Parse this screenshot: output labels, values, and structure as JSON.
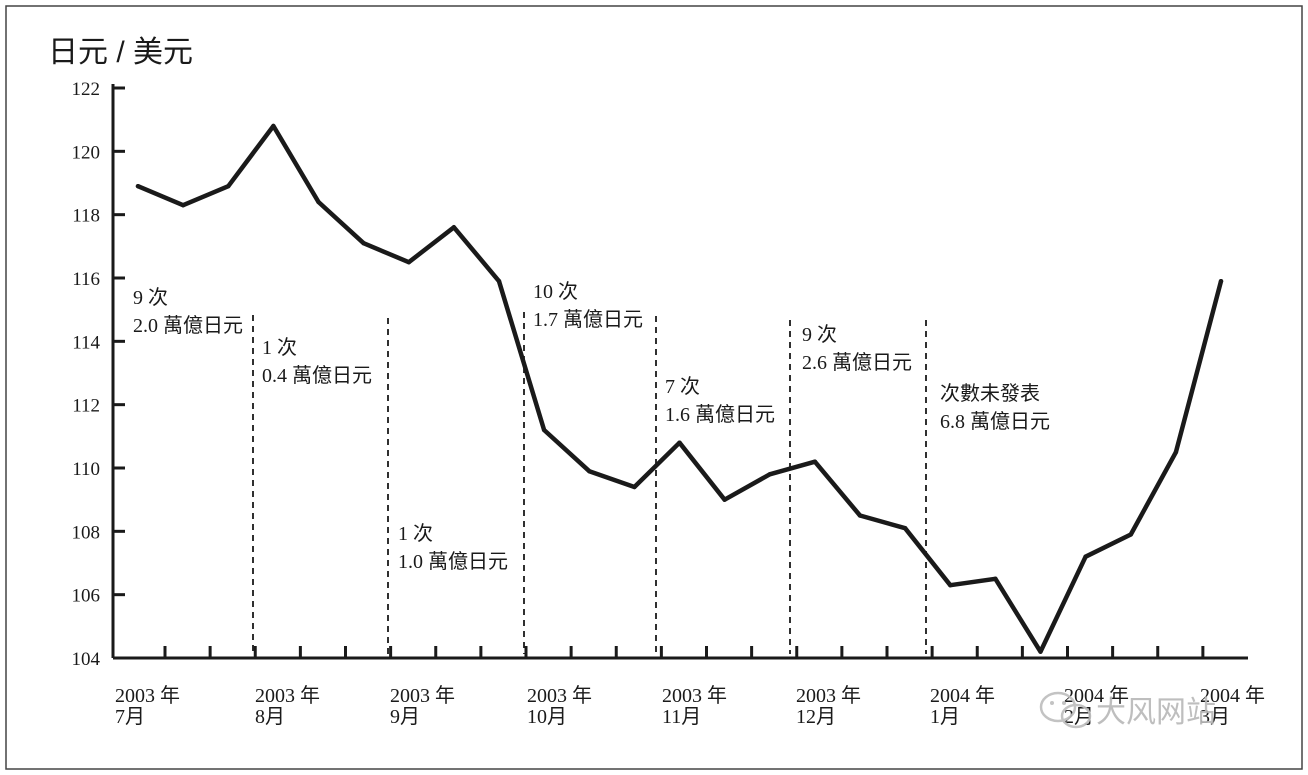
{
  "chart_data": {
    "type": "line",
    "ylabel": "日元 / 美元",
    "ylim": [
      104,
      122
    ],
    "yticks": [
      122,
      120,
      118,
      116,
      114,
      112,
      110,
      108,
      106,
      104
    ],
    "xticks": [
      {
        "year": "2003 年",
        "month": "7月"
      },
      {
        "year": "2003 年",
        "month": "8月"
      },
      {
        "year": "2003 年",
        "month": "9月"
      },
      {
        "year": "2003 年",
        "month": "10月"
      },
      {
        "year": "2003 年",
        "month": "11月"
      },
      {
        "year": "2003 年",
        "month": "12月"
      },
      {
        "year": "2004 年",
        "month": "1月"
      },
      {
        "year": "2004 年",
        "month": "2月"
      },
      {
        "year": "2004 年",
        "month": "3月"
      }
    ],
    "series": [
      {
        "values": [
          118.9,
          118.3,
          118.9,
          120.8,
          118.4,
          117.1,
          116.5,
          117.6,
          115.9,
          111.2,
          109.9,
          109.4,
          110.8,
          109.0,
          109.8,
          110.2,
          108.5,
          108.1,
          106.3,
          106.5,
          104.2,
          107.2,
          107.9,
          110.5,
          115.9
        ]
      }
    ],
    "annotations": [
      {
        "line1": "9 次",
        "line2": "2.0 萬億日元"
      },
      {
        "line1": "1 次",
        "line2": "0.4 萬億日元"
      },
      {
        "line1": "1 次",
        "line2": "1.0 萬億日元"
      },
      {
        "line1": "10 次",
        "line2": "1.7 萬億日元"
      },
      {
        "line1": "7 次",
        "line2": "1.6 萬億日元"
      },
      {
        "line1": "9 次",
        "line2": "2.6 萬億日元"
      },
      {
        "line1": "次數未發表",
        "line2": "6.8 萬億日元"
      }
    ],
    "grid": false,
    "legend": "none"
  },
  "watermark": {
    "text": "大风网站",
    "icon": "wechat-icon"
  }
}
